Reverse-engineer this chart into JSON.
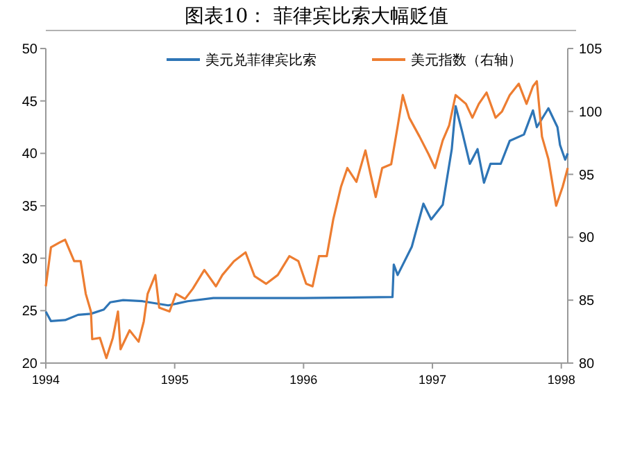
{
  "chart_data": {
    "type": "line",
    "title": "图表10：    菲律宾比索大幅贬值",
    "xlim": [
      1994,
      1998.05
    ],
    "xticks": [
      1994,
      1995,
      1996,
      1997,
      1998
    ],
    "ylim": [
      20,
      50
    ],
    "yticks": [
      20,
      25,
      30,
      35,
      40,
      45,
      50
    ],
    "y2lim": [
      80,
      105
    ],
    "y2ticks": [
      80,
      85,
      90,
      95,
      100,
      105
    ],
    "legend": "top",
    "grid": false,
    "series": [
      {
        "name": "美元兑菲律宾比索",
        "color": "#2e75b6",
        "x": [
          1994.0,
          1994.04,
          1994.15,
          1994.25,
          1994.35,
          1994.45,
          1994.5,
          1994.6,
          1994.75,
          1994.95,
          1995.1,
          1995.3,
          1995.6,
          1996.0,
          1996.69,
          1996.7,
          1996.73,
          1996.84,
          1996.93,
          1996.99,
          1997.08,
          1997.15,
          1997.18,
          1997.23,
          1997.29,
          1997.35,
          1997.4,
          1997.45,
          1997.53,
          1997.6,
          1997.71,
          1997.78,
          1997.81,
          1997.9,
          1997.97,
          1997.99,
          1998.03,
          1998.05
        ],
        "values": [
          24.9,
          24.0,
          24.1,
          24.6,
          24.7,
          25.1,
          25.8,
          26.0,
          25.9,
          25.5,
          25.9,
          26.2,
          26.2,
          26.2,
          26.3,
          29.4,
          28.4,
          31.1,
          35.2,
          33.7,
          35.1,
          40.4,
          44.5,
          42.1,
          39.0,
          40.4,
          37.2,
          39.0,
          39.0,
          41.2,
          41.8,
          44.1,
          42.5,
          44.3,
          42.5,
          40.8,
          39.4,
          40.0
        ]
      },
      {
        "name": "美元指数（右轴）",
        "color": "#ed7d31",
        "axis": "y2",
        "x": [
          1994.0,
          1994.04,
          1994.11,
          1994.15,
          1994.22,
          1994.27,
          1994.31,
          1994.35,
          1994.36,
          1994.42,
          1994.47,
          1994.52,
          1994.56,
          1994.58,
          1994.65,
          1994.72,
          1994.76,
          1994.79,
          1994.85,
          1994.88,
          1994.96,
          1995.01,
          1995.08,
          1995.14,
          1995.23,
          1995.32,
          1995.37,
          1995.46,
          1995.55,
          1995.62,
          1995.71,
          1995.8,
          1995.89,
          1995.96,
          1996.02,
          1996.07,
          1996.12,
          1996.18,
          1996.23,
          1996.29,
          1996.34,
          1996.41,
          1996.48,
          1996.52,
          1996.56,
          1996.61,
          1996.68,
          1996.73,
          1996.77,
          1996.82,
          1996.9,
          1996.97,
          1997.02,
          1997.08,
          1997.13,
          1997.18,
          1997.26,
          1997.31,
          1997.36,
          1997.42,
          1997.49,
          1997.54,
          1997.6,
          1997.67,
          1997.73,
          1997.78,
          1997.81,
          1997.85,
          1997.9,
          1997.96,
          1998.01,
          1998.05
        ],
        "values": [
          86.1,
          89.2,
          89.6,
          89.8,
          88.1,
          88.1,
          85.5,
          84.1,
          81.9,
          82.0,
          80.4,
          82.0,
          84.1,
          81.1,
          82.6,
          81.7,
          83.3,
          85.5,
          87.0,
          84.4,
          84.1,
          85.5,
          85.1,
          85.9,
          87.4,
          86.1,
          87.0,
          88.1,
          88.8,
          86.9,
          86.3,
          87.0,
          88.5,
          88.1,
          86.3,
          86.1,
          88.5,
          88.5,
          91.4,
          94.0,
          95.5,
          94.4,
          96.9,
          95.0,
          93.2,
          95.5,
          95.8,
          98.8,
          101.3,
          99.5,
          98.0,
          96.6,
          95.5,
          97.7,
          98.9,
          101.3,
          100.6,
          99.5,
          100.6,
          101.5,
          99.5,
          100.0,
          101.3,
          102.2,
          100.6,
          102.0,
          102.4,
          98.0,
          96.2,
          92.5,
          94.0,
          95.5
        ]
      }
    ]
  }
}
